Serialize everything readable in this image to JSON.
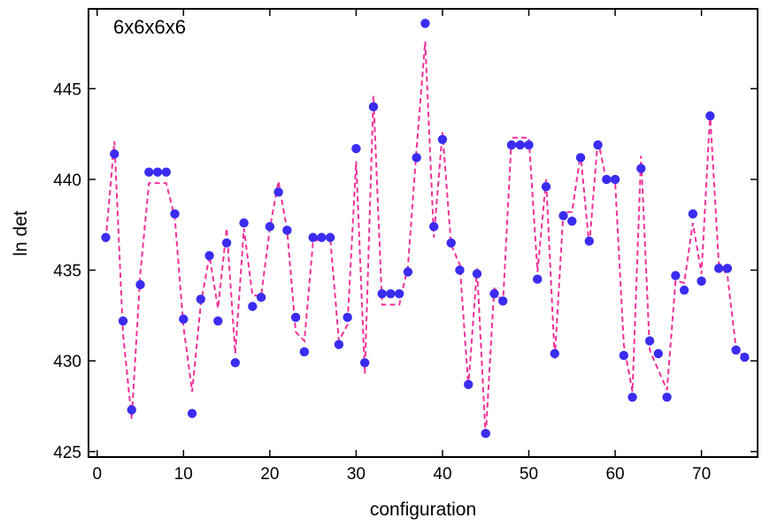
{
  "chart_data": {
    "type": "scatter",
    "title": "",
    "annotation": "6x6x6x6",
    "xlabel": "configuration",
    "ylabel": "ln det",
    "xlim": [
      -1,
      76.5
    ],
    "ylim": [
      424.7,
      449.4
    ],
    "xticks": [
      0,
      10,
      20,
      30,
      40,
      50,
      60,
      70
    ],
    "yticks": [
      425,
      430,
      435,
      440,
      445
    ],
    "grid": false,
    "legend": "none",
    "colors": {
      "points": "#3a2cf2",
      "fit_line": "#f0309a"
    },
    "series": [
      {
        "style": "points",
        "x": [
          1,
          2,
          3,
          4,
          5,
          6,
          7,
          8,
          9,
          10,
          11,
          12,
          13,
          14,
          15,
          16,
          17,
          18,
          19,
          20,
          21,
          22,
          23,
          24,
          25,
          26,
          27,
          28,
          29,
          30,
          31,
          32,
          33,
          34,
          35,
          36,
          37,
          38,
          39,
          40,
          41,
          42,
          43,
          44,
          45,
          46,
          47,
          48,
          49,
          50,
          51,
          52,
          53,
          54,
          55,
          56,
          57,
          58,
          59,
          60,
          61,
          62,
          63,
          64,
          65,
          66,
          67,
          68,
          69,
          70,
          71,
          72,
          73,
          74,
          75
        ],
        "y": [
          436.8,
          441.4,
          432.2,
          427.3,
          434.2,
          440.4,
          440.4,
          440.4,
          438.1,
          432.3,
          427.1,
          433.4,
          435.8,
          432.2,
          436.5,
          429.9,
          437.6,
          433.0,
          433.5,
          437.4,
          439.3,
          437.2,
          432.4,
          430.5,
          436.8,
          436.8,
          436.8,
          430.9,
          432.4,
          441.7,
          429.9,
          444.0,
          433.7,
          433.7,
          433.7,
          434.9,
          441.2,
          448.6,
          437.4,
          442.2,
          436.5,
          435.0,
          428.7,
          434.8,
          426.0,
          433.7,
          433.3,
          441.9,
          441.9,
          441.9,
          434.5,
          439.6,
          430.4,
          438.0,
          437.7,
          441.2,
          436.6,
          441.9,
          440.0,
          440.0,
          430.3,
          428.0,
          440.6,
          431.1,
          430.4,
          428.0,
          434.7,
          433.9,
          438.1,
          434.4,
          443.5,
          435.1,
          435.1,
          430.6,
          430.2
        ]
      },
      {
        "style": "dashed-line",
        "x": [
          1,
          2,
          3,
          4,
          5,
          6,
          7,
          8,
          9,
          10,
          11,
          12,
          13,
          14,
          15,
          16,
          17,
          18,
          19,
          20,
          21,
          22,
          23,
          24,
          25,
          26,
          27,
          28,
          29,
          30,
          31,
          32,
          33,
          34,
          35,
          36,
          37,
          38,
          39,
          40,
          41,
          42,
          43,
          44,
          45,
          46,
          47,
          48,
          49,
          50,
          51,
          52,
          53,
          54,
          55,
          56,
          57,
          58,
          59,
          60,
          61,
          62,
          63,
          64,
          65,
          66,
          67,
          68,
          69,
          70,
          71,
          72,
          73,
          74,
          75
        ],
        "y": [
          436.7,
          442.1,
          431.5,
          426.8,
          434.8,
          439.8,
          439.8,
          439.8,
          437.9,
          431.9,
          428.3,
          433.1,
          435.8,
          432.9,
          437.3,
          430.4,
          437.3,
          433.6,
          433.6,
          437.3,
          439.9,
          437.2,
          431.6,
          431.1,
          436.5,
          436.8,
          436.8,
          431.1,
          432.0,
          441.0,
          429.3,
          444.6,
          433.1,
          433.1,
          433.1,
          435.2,
          441.7,
          447.6,
          436.8,
          442.6,
          436.4,
          435.3,
          428.6,
          435.1,
          425.8,
          434.1,
          433.1,
          442.3,
          442.3,
          442.3,
          434.9,
          440.0,
          430.1,
          438.2,
          438.2,
          441.4,
          436.3,
          442.2,
          439.9,
          439.9,
          430.9,
          428.3,
          441.3,
          430.6,
          429.5,
          428.4,
          434.4,
          434.3,
          437.6,
          434.8,
          443.6,
          435.4,
          434.7,
          430.7,
          430.2
        ]
      }
    ]
  }
}
